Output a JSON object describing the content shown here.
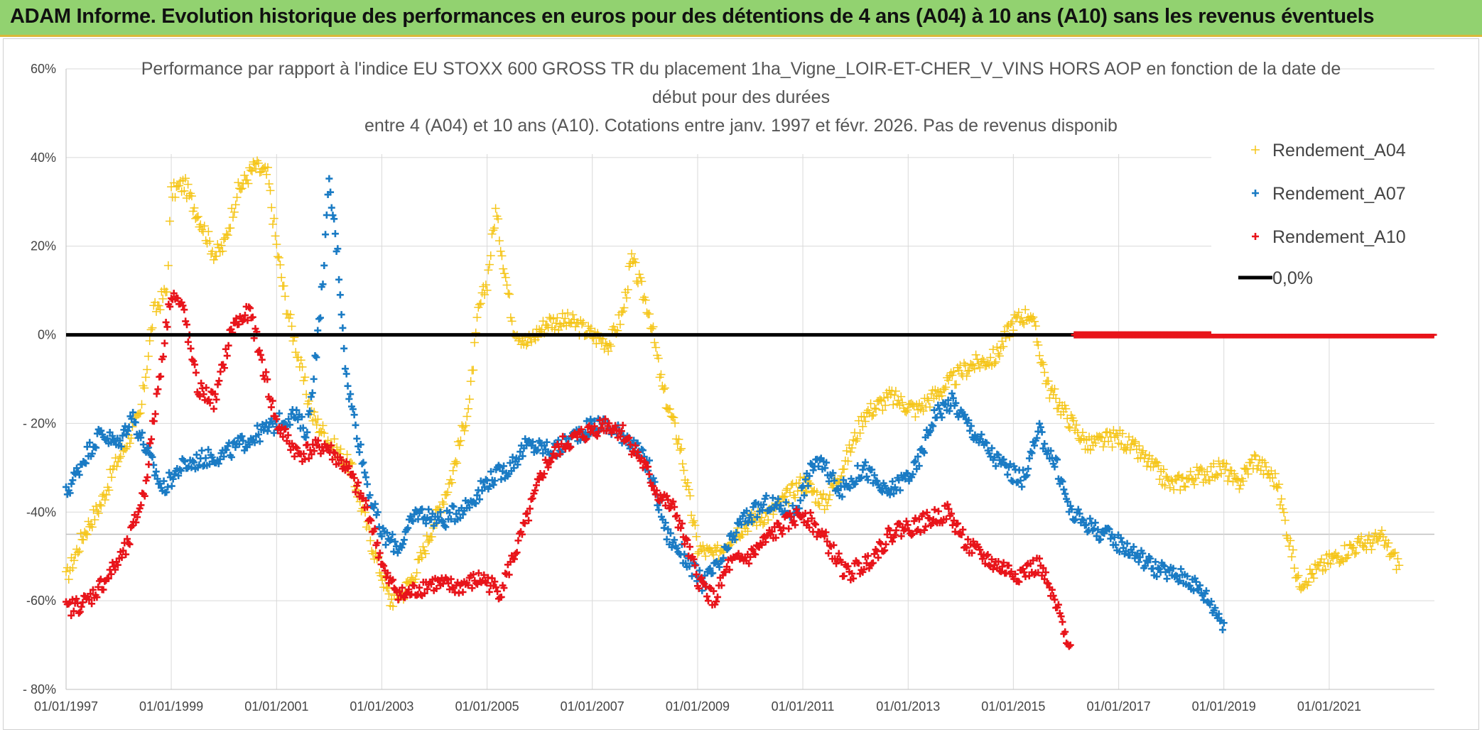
{
  "header": {
    "title": "ADAM Informe. Evolution historique des performances en euros pour des détentions de 4 ans (A04) à 10 ans (A10) sans les revenus éventuels"
  },
  "chart_data": {
    "type": "scatter",
    "title_lines": [
      "Performance par rapport à l'indice EU STOXX 600 GROSS TR  du placement 1ha_Vigne_LOIR-ET-CHER_V_VINS HORS AOP en fonction de la date de",
      "début pour des durées",
      "entre 4 (A04) et 10 ans (A10). Cotations entre janv. 1997 et févr. 2026. Pas de revenus disponib"
    ],
    "x_ticks": [
      "01/01/1997",
      "01/01/1999",
      "01/01/2001",
      "01/01/2003",
      "01/01/2005",
      "01/01/2007",
      "01/01/2009",
      "01/01/2011",
      "01/01/2013",
      "01/01/2015",
      "01/01/2017",
      "01/01/2019",
      "01/01/2021"
    ],
    "xlim": [
      "1997-01-01",
      "2023-01-01"
    ],
    "y_ticks": [
      "60%",
      "40%",
      "20%",
      "0%",
      "- 20%",
      "-40%",
      "-60%",
      "- 80%"
    ],
    "ylim": [
      -80,
      60
    ],
    "grid": true,
    "legend_position": "top-right",
    "series": [
      {
        "name": "Rendement_A04",
        "color": "#f5c518",
        "marker": "plus-thin",
        "points": [
          [
            "1997-01-01",
            -55
          ],
          [
            "1997-05-01",
            -45
          ],
          [
            "1997-09-01",
            -38
          ],
          [
            "1997-12-01",
            -30
          ],
          [
            "1998-03-01",
            -24
          ],
          [
            "1998-06-01",
            -18
          ],
          [
            "1998-09-01",
            5
          ],
          [
            "1998-12-01",
            10
          ],
          [
            "1999-01-01",
            32
          ],
          [
            "1999-04-01",
            34
          ],
          [
            "1999-08-01",
            25
          ],
          [
            "1999-11-01",
            18
          ],
          [
            "2000-01-01",
            20
          ],
          [
            "2000-04-01",
            32
          ],
          [
            "2000-08-01",
            38
          ],
          [
            "2000-11-01",
            36
          ],
          [
            "2001-01-01",
            20
          ],
          [
            "2001-03-01",
            8
          ],
          [
            "2001-06-01",
            -5
          ],
          [
            "2001-09-01",
            -18
          ],
          [
            "2002-01-01",
            -24
          ],
          [
            "2002-06-01",
            -30
          ],
          [
            "2002-11-01",
            -48
          ],
          [
            "2003-03-01",
            -60
          ],
          [
            "2003-06-01",
            -58
          ],
          [
            "2003-09-01",
            -53
          ],
          [
            "2004-01-01",
            -42
          ],
          [
            "2004-05-01",
            -32
          ],
          [
            "2004-09-01",
            -15
          ],
          [
            "2004-11-01",
            5
          ],
          [
            "2005-01-01",
            12
          ],
          [
            "2005-03-01",
            28
          ],
          [
            "2005-07-01",
            2
          ],
          [
            "2005-10-01",
            -2
          ],
          [
            "2006-03-01",
            3
          ],
          [
            "2006-08-01",
            3
          ],
          [
            "2007-01-01",
            0
          ],
          [
            "2007-05-01",
            -2
          ],
          [
            "2007-08-01",
            5
          ],
          [
            "2007-10-01",
            17
          ],
          [
            "2008-02-01",
            5
          ],
          [
            "2008-05-01",
            -12
          ],
          [
            "2008-09-01",
            -25
          ],
          [
            "2009-01-01",
            -48
          ],
          [
            "2009-05-01",
            -50
          ],
          [
            "2009-09-01",
            -45
          ],
          [
            "2010-01-01",
            -42
          ],
          [
            "2010-06-01",
            -40
          ],
          [
            "2011-01-01",
            -33
          ],
          [
            "2011-06-01",
            -38
          ],
          [
            "2011-11-01",
            -28
          ],
          [
            "2012-03-01",
            -18
          ],
          [
            "2012-09-01",
            -14
          ],
          [
            "2013-03-01",
            -17
          ],
          [
            "2013-09-01",
            -12
          ],
          [
            "2014-03-01",
            -7
          ],
          [
            "2014-09-01",
            -5
          ],
          [
            "2015-01-01",
            3
          ],
          [
            "2015-05-01",
            5
          ],
          [
            "2015-09-01",
            -12
          ],
          [
            "2016-01-01",
            -18
          ],
          [
            "2016-06-01",
            -25
          ],
          [
            "2017-01-01",
            -23
          ],
          [
            "2017-06-01",
            -27
          ],
          [
            "2018-01-01",
            -34
          ],
          [
            "2018-06-01",
            -32
          ],
          [
            "2019-01-01",
            -30
          ],
          [
            "2019-04-01",
            -34
          ],
          [
            "2019-08-01",
            -28
          ],
          [
            "2020-01-01",
            -33
          ],
          [
            "2020-03-01",
            -42
          ],
          [
            "2020-06-01",
            -56
          ],
          [
            "2021-01-01",
            -51
          ],
          [
            "2021-06-01",
            -48
          ],
          [
            "2022-01-01",
            -46
          ],
          [
            "2022-05-01",
            -52
          ]
        ]
      },
      {
        "name": "Rendement_A07",
        "color": "#1a7bc4",
        "marker": "plus-bold",
        "points": [
          [
            "1997-01-01",
            -36
          ],
          [
            "1997-05-01",
            -28
          ],
          [
            "1997-09-01",
            -22
          ],
          [
            "1998-01-01",
            -25
          ],
          [
            "1998-04-01",
            -18
          ],
          [
            "1998-07-01",
            -25
          ],
          [
            "1998-11-01",
            -35
          ],
          [
            "1999-03-01",
            -30
          ],
          [
            "1999-08-01",
            -28
          ],
          [
            "2000-01-01",
            -27
          ],
          [
            "2000-06-01",
            -24
          ],
          [
            "2001-01-01",
            -20
          ],
          [
            "2001-05-01",
            -18
          ],
          [
            "2001-08-01",
            -22
          ],
          [
            "2001-11-01",
            5
          ],
          [
            "2002-01-01",
            34
          ],
          [
            "2002-03-01",
            18
          ],
          [
            "2002-05-01",
            -10
          ],
          [
            "2002-10-01",
            -35
          ],
          [
            "2003-01-01",
            -45
          ],
          [
            "2003-05-01",
            -48
          ],
          [
            "2003-09-01",
            -40
          ],
          [
            "2004-03-01",
            -42
          ],
          [
            "2004-09-01",
            -38
          ],
          [
            "2005-01-01",
            -33
          ],
          [
            "2005-06-01",
            -30
          ],
          [
            "2005-10-01",
            -25
          ],
          [
            "2006-05-01",
            -26
          ],
          [
            "2006-10-01",
            -22
          ],
          [
            "2007-03-01",
            -20
          ],
          [
            "2007-09-01",
            -23
          ],
          [
            "2008-02-01",
            -30
          ],
          [
            "2008-06-01",
            -45
          ],
          [
            "2008-10-01",
            -50
          ],
          [
            "2009-02-01",
            -56
          ],
          [
            "2009-06-01",
            -52
          ],
          [
            "2009-11-01",
            -42
          ],
          [
            "2010-05-01",
            -38
          ],
          [
            "2010-11-01",
            -40
          ],
          [
            "2011-04-01",
            -28
          ],
          [
            "2011-10-01",
            -35
          ],
          [
            "2012-03-01",
            -30
          ],
          [
            "2012-08-01",
            -36
          ],
          [
            "2013-03-01",
            -30
          ],
          [
            "2013-07-01",
            -18
          ],
          [
            "2013-11-01",
            -15
          ],
          [
            "2014-04-01",
            -22
          ],
          [
            "2014-09-01",
            -28
          ],
          [
            "2015-03-01",
            -33
          ],
          [
            "2015-07-01",
            -22
          ],
          [
            "2015-11-01",
            -30
          ],
          [
            "2016-02-01",
            -40
          ],
          [
            "2016-08-01",
            -44
          ],
          [
            "2017-03-01",
            -48
          ],
          [
            "2017-10-01",
            -53
          ],
          [
            "2018-05-01",
            -55
          ],
          [
            "2018-09-01",
            -59
          ],
          [
            "2019-01-01",
            -65
          ]
        ]
      },
      {
        "name": "Rendement_A10",
        "color": "#e8141a",
        "marker": "plus-bold",
        "points": [
          [
            "1997-01-01",
            -62
          ],
          [
            "1997-06-01",
            -60
          ],
          [
            "1997-11-01",
            -54
          ],
          [
            "1998-03-01",
            -48
          ],
          [
            "1998-07-01",
            -35
          ],
          [
            "1998-10-01",
            -12
          ],
          [
            "1999-01-01",
            10
          ],
          [
            "1999-04-01",
            5
          ],
          [
            "1999-07-01",
            -12
          ],
          [
            "1999-11-01",
            -15
          ],
          [
            "2000-03-01",
            2
          ],
          [
            "2000-07-01",
            5
          ],
          [
            "2001-01-01",
            -20
          ],
          [
            "2001-06-01",
            -27
          ],
          [
            "2001-12-01",
            -25
          ],
          [
            "2002-05-01",
            -30
          ],
          [
            "2002-10-01",
            -40
          ],
          [
            "2003-02-01",
            -55
          ],
          [
            "2003-06-01",
            -59
          ],
          [
            "2003-12-01",
            -56
          ],
          [
            "2004-06-01",
            -57
          ],
          [
            "2004-12-01",
            -55
          ],
          [
            "2005-04-01",
            -58
          ],
          [
            "2005-09-01",
            -45
          ],
          [
            "2006-02-01",
            -30
          ],
          [
            "2006-06-01",
            -25
          ],
          [
            "2006-12-01",
            -22
          ],
          [
            "2007-04-01",
            -20
          ],
          [
            "2007-08-01",
            -22
          ],
          [
            "2007-12-01",
            -28
          ],
          [
            "2008-04-01",
            -36
          ],
          [
            "2008-08-01",
            -40
          ],
          [
            "2009-01-01",
            -55
          ],
          [
            "2009-05-01",
            -60
          ],
          [
            "2009-08-01",
            -52
          ],
          [
            "2010-01-01",
            -50
          ],
          [
            "2010-06-01",
            -45
          ],
          [
            "2011-01-01",
            -40
          ],
          [
            "2011-06-01",
            -46
          ],
          [
            "2011-11-01",
            -54
          ],
          [
            "2012-03-01",
            -52
          ],
          [
            "2012-10-01",
            -44
          ],
          [
            "2013-03-01",
            -43
          ],
          [
            "2013-10-01",
            -40
          ],
          [
            "2014-03-01",
            -48
          ],
          [
            "2014-09-01",
            -52
          ],
          [
            "2015-02-01",
            -54
          ],
          [
            "2015-07-01",
            -52
          ],
          [
            "2015-11-01",
            -62
          ],
          [
            "2016-02-01",
            -70
          ]
        ]
      }
    ],
    "reference_line": {
      "label": "0,0%",
      "y": 0,
      "color": "#000000"
    },
    "zero_tail": {
      "series": "Rendement_A10",
      "from": "2016-03-01",
      "to": "2023-01-01",
      "y": 0
    }
  }
}
